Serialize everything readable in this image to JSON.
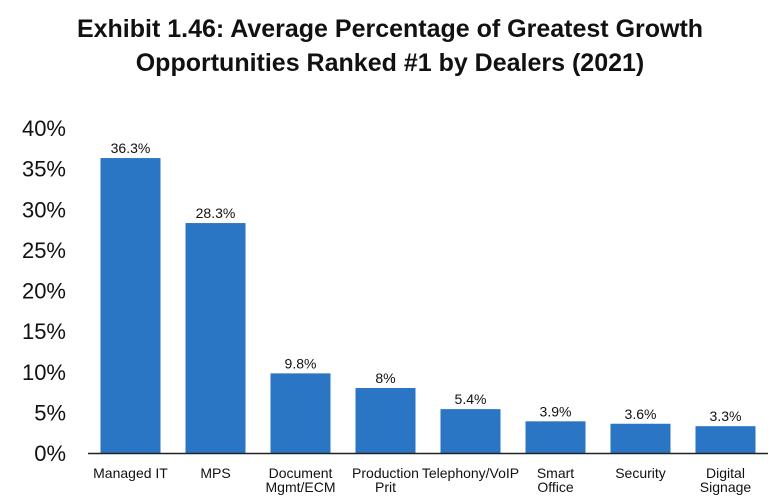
{
  "chart_data": {
    "type": "bar",
    "title_lines": [
      "Exhibit 1.46: Average Percentage of Greatest Growth",
      "Opportunities Ranked #1 by Dealers (2021)"
    ],
    "categories": [
      [
        "Managed IT"
      ],
      [
        "MPS"
      ],
      [
        "Document",
        "Mgmt/ECM"
      ],
      [
        "Production",
        "Prit"
      ],
      [
        "Telephony/VoIP"
      ],
      [
        "Smart",
        "Office"
      ],
      [
        "Security"
      ],
      [
        "Digital",
        "Signage"
      ]
    ],
    "values": [
      36.3,
      28.3,
      9.8,
      8,
      5.4,
      3.9,
      3.6,
      3.3
    ],
    "data_labels": [
      "36.3%",
      "28.3%",
      "9.8%",
      "8%",
      "5.4%",
      "3.9%",
      "3.6%",
      "3.3%"
    ],
    "y_ticks": [
      "0%",
      "5%",
      "10%",
      "15%",
      "20%",
      "25%",
      "30%",
      "35%",
      "40%"
    ],
    "ylim": [
      0,
      40
    ],
    "grid": false,
    "legend": "none",
    "bar_color": "#2a75c4",
    "axis_color": "#222222"
  }
}
